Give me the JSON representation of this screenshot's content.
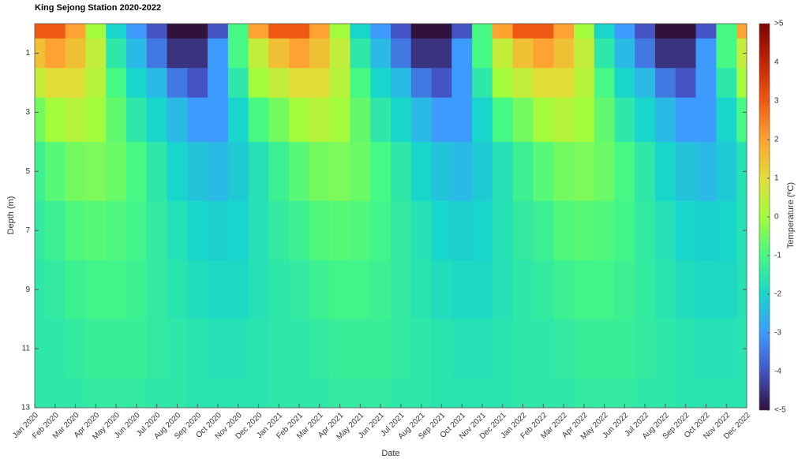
{
  "chart_data": {
    "type": "heatmap",
    "title": "King Sejong Station 2020-2022",
    "xlabel": "Date",
    "ylabel": "Depth (m)",
    "colorbar_label": "Temperature (ºC)",
    "x": [
      "Jan 2020",
      "Feb 2020",
      "Mar 2020",
      "Apr 2020",
      "May 2020",
      "Jun 2020",
      "Jul 2020",
      "Aug 2020",
      "Sep 2020",
      "Oct 2020",
      "Nov 2020",
      "Dec 2020",
      "Jan 2021",
      "Feb 2021",
      "Mar 2021",
      "Apr 2021",
      "May 2021",
      "Jun 2021",
      "Jul 2021",
      "Aug 2021",
      "Sep 2021",
      "Oct 2021",
      "Nov 2021",
      "Dec 2021",
      "Jan 2022",
      "Feb 2022",
      "Mar 2022",
      "Apr 2022",
      "May 2022",
      "Jun 2022",
      "Jul 2022",
      "Aug 2022",
      "Sep 2022",
      "Oct 2022",
      "Nov 2022",
      "Dec 2022"
    ],
    "y": [
      0,
      1,
      2,
      3,
      5,
      7,
      9,
      11,
      13
    ],
    "ylim": [
      0,
      13
    ],
    "yticks": [
      1,
      3,
      5,
      7,
      9,
      11,
      13
    ],
    "y_reversed": true,
    "zlim": [
      -5,
      5
    ],
    "zticks": [
      {
        "value": 5,
        "label": ">5"
      },
      4,
      3,
      2,
      1,
      0,
      -1,
      -2,
      -3,
      -4,
      {
        "value": -5,
        "label": "<-5"
      }
    ],
    "colormap": [
      "#30123b",
      "#4454c4",
      "#3e9bfe",
      "#18d6cb",
      "#46f884",
      "#a2fc3c",
      "#e1dd37",
      "#fea331",
      "#ef5911",
      "#c22402",
      "#7a0403"
    ],
    "z": [
      [
        3,
        3,
        2,
        0,
        -2,
        -3,
        -4,
        -5,
        -5,
        -4,
        -1,
        2,
        3,
        3,
        2,
        0,
        -2,
        -3,
        -4,
        -5,
        -5,
        -4,
        -1,
        2,
        3,
        3,
        2,
        0,
        -2,
        -3,
        -4,
        -5,
        -5,
        -4,
        -1,
        2
      ],
      [
        1.5,
        2,
        1.5,
        0.5,
        -1.5,
        -2.5,
        -3.5,
        -4.5,
        -4.5,
        -3,
        -1,
        0.5,
        1.5,
        2,
        1.5,
        0.5,
        -1.5,
        -2.5,
        -3.5,
        -4.5,
        -4.5,
        -3,
        -1,
        0.5,
        1.5,
        2,
        1.5,
        0.5,
        -1.5,
        -2.5,
        -3.5,
        -4.5,
        -4.5,
        -3,
        -1,
        0.5
      ],
      [
        0.5,
        1,
        1,
        0.3,
        -1,
        -2,
        -2.5,
        -3.5,
        -4,
        -3,
        -1.5,
        0,
        0.5,
        1,
        1,
        0.3,
        -1,
        -2,
        -2.5,
        -3.5,
        -4,
        -3,
        -1.5,
        0,
        0.5,
        1,
        1,
        0.3,
        -1,
        -2,
        -2.5,
        -3.5,
        -4,
        -3,
        -1.5,
        0
      ],
      [
        -0.5,
        0,
        0.3,
        0,
        -0.7,
        -1.5,
        -2,
        -2.5,
        -3,
        -3,
        -2,
        -1,
        -0.5,
        0,
        0.3,
        0,
        -0.7,
        -1.5,
        -2,
        -2.5,
        -3,
        -3,
        -2,
        -1,
        -0.5,
        0,
        0.3,
        0,
        -0.7,
        -1.5,
        -2,
        -2.5,
        -3,
        -3,
        -2,
        -1
      ],
      [
        -1.2,
        -0.8,
        -0.5,
        -0.4,
        -0.6,
        -1,
        -1.5,
        -2,
        -2.3,
        -2.5,
        -2.2,
        -1.7,
        -1.2,
        -0.8,
        -0.5,
        -0.4,
        -0.6,
        -1,
        -1.5,
        -2,
        -2.3,
        -2.5,
        -2.2,
        -1.7,
        -1.2,
        -0.8,
        -0.5,
        -0.4,
        -0.6,
        -1,
        -1.5,
        -2,
        -2.3,
        -2.5,
        -2.2,
        -1.7
      ],
      [
        -1.4,
        -1.2,
        -0.9,
        -0.8,
        -0.9,
        -1.1,
        -1.4,
        -1.7,
        -2,
        -2.1,
        -2,
        -1.7,
        -1.4,
        -1.2,
        -0.9,
        -0.8,
        -0.9,
        -1.1,
        -1.4,
        -1.7,
        -2,
        -2.1,
        -2,
        -1.7,
        -1.4,
        -1.2,
        -0.9,
        -0.8,
        -0.9,
        -1.1,
        -1.4,
        -1.7,
        -2,
        -2.1,
        -2,
        -1.7
      ],
      [
        -1.5,
        -1.4,
        -1.2,
        -1.1,
        -1.1,
        -1.2,
        -1.4,
        -1.6,
        -1.8,
        -1.9,
        -1.9,
        -1.7,
        -1.5,
        -1.4,
        -1.2,
        -1.1,
        -1.1,
        -1.2,
        -1.4,
        -1.6,
        -1.8,
        -1.9,
        -1.9,
        -1.7,
        -1.5,
        -1.4,
        -1.2,
        -1.1,
        -1.1,
        -1.2,
        -1.4,
        -1.6,
        -1.8,
        -1.9,
        -1.9,
        -1.7
      ],
      [
        -1.5,
        -1.5,
        -1.4,
        -1.3,
        -1.3,
        -1.3,
        -1.4,
        -1.5,
        -1.6,
        -1.7,
        -1.7,
        -1.6,
        -1.5,
        -1.5,
        -1.4,
        -1.3,
        -1.3,
        -1.3,
        -1.4,
        -1.5,
        -1.6,
        -1.7,
        -1.7,
        -1.6,
        -1.5,
        -1.5,
        -1.4,
        -1.3,
        -1.3,
        -1.3,
        -1.4,
        -1.5,
        -1.6,
        -1.7,
        -1.7,
        -1.6
      ],
      [
        -1.5,
        -1.5,
        -1.5,
        -1.4,
        -1.4,
        -1.4,
        -1.5,
        -1.5,
        -1.6,
        -1.6,
        -1.6,
        -1.6,
        -1.5,
        -1.5,
        -1.5,
        -1.4,
        -1.4,
        -1.4,
        -1.5,
        -1.5,
        -1.6,
        -1.6,
        -1.6,
        -1.6,
        -1.5,
        -1.5,
        -1.5,
        -1.4,
        -1.4,
        -1.4,
        -1.5,
        -1.5,
        -1.6,
        -1.6,
        -1.6,
        -1.6
      ]
    ]
  }
}
